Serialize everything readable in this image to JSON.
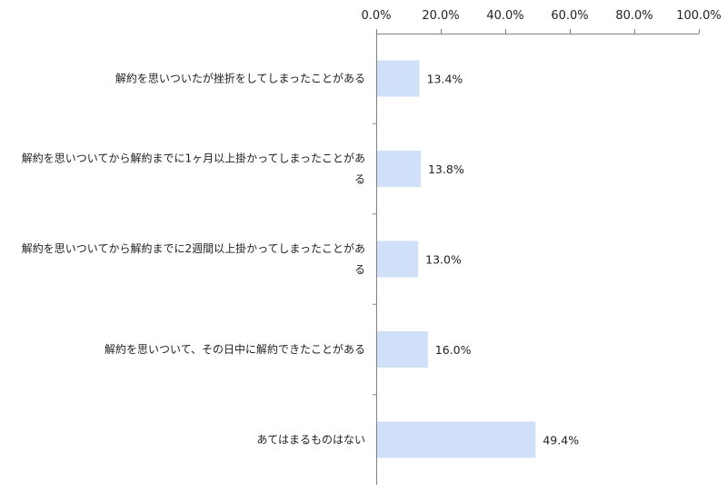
{
  "chart_data": {
    "type": "bar",
    "orientation": "horizontal",
    "categories": [
      [
        "解約を思いついたが挫折をしてしまったことがある"
      ],
      [
        "解約を思いついてから解約までに1ヶ月以上掛かってしまったことがあ",
        "る"
      ],
      [
        "解約を思いついてから解約までに2週間以上掛かってしまったことがあ",
        "る"
      ],
      [
        "解約を思いついて、その日中に解約できたことがある"
      ],
      [
        "あてはまるものはない"
      ]
    ],
    "values": [
      13.4,
      13.8,
      13.0,
      16.0,
      49.4
    ],
    "data_labels": [
      "13.4%",
      "13.8%",
      "13.0%",
      "16.0%",
      "49.4%"
    ],
    "x_ticks": [
      0,
      20,
      40,
      60,
      80,
      100
    ],
    "x_tick_labels": [
      "0.0%",
      "20.0%",
      "40.0%",
      "60.0%",
      "80.0%",
      "100.0%"
    ],
    "xlim": [
      0,
      100
    ],
    "axis_position": "top",
    "grid": false,
    "legend": "none",
    "bar_color": "#cfe0f8",
    "axis_color": "#808080"
  }
}
